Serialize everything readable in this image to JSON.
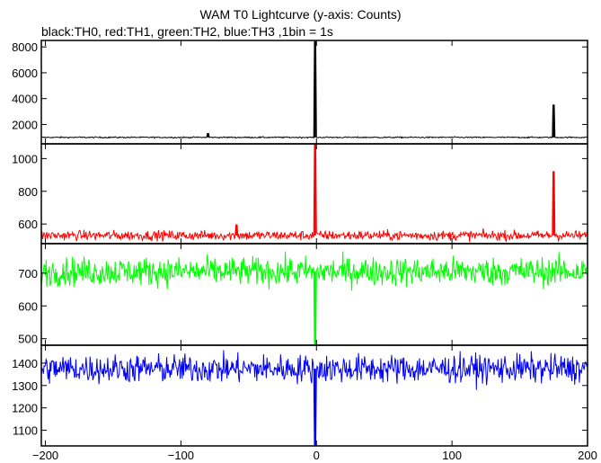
{
  "chart_data": {
    "type": "line",
    "title": "WAM T0 Lightcurve (y-axis: Counts)",
    "subtitle": "black:TH0, red:TH1, green:TH2, blue:TH3 ,1bin = 1s",
    "xlim": [
      -203,
      200
    ],
    "x_ticks": [
      -200,
      -100,
      0,
      100,
      200
    ],
    "x_tick_labels": [
      "−200",
      "−100",
      "0",
      "100",
      "200"
    ],
    "grid": false,
    "panels": [
      {
        "name": "TH0",
        "color": "#000000",
        "ylim": [
          500,
          8500
        ],
        "y_ticks": [
          2000,
          4000,
          6000,
          8000
        ],
        "baseline": 1000,
        "noise": 25,
        "features": [
          {
            "x": -80,
            "y": 1300
          },
          {
            "x": -1,
            "y": 8400
          },
          {
            "x": 175,
            "y": 3500
          }
        ]
      },
      {
        "name": "TH1",
        "color": "#ff0000",
        "ylim": [
          480,
          1090
        ],
        "y_ticks": [
          600,
          800,
          1000
        ],
        "baseline": 530,
        "noise": 15,
        "features": [
          {
            "x": -59,
            "y": 595
          },
          {
            "x": -1,
            "y": 1090
          },
          {
            "x": 175,
            "y": 920
          }
        ]
      },
      {
        "name": "TH2",
        "color": "#00ff00",
        "ylim": [
          480,
          790
        ],
        "y_ticks": [
          500,
          600,
          700
        ],
        "baseline": 705,
        "noise": 22,
        "features": [
          {
            "x": -1,
            "y": 480
          }
        ]
      },
      {
        "name": "TH3",
        "color": "#0000ff",
        "ylim": [
          1030,
          1480
        ],
        "y_ticks": [
          1100,
          1200,
          1300,
          1400
        ],
        "baseline": 1375,
        "noise": 32,
        "features": [
          {
            "x": -1,
            "y": 1030
          }
        ]
      }
    ]
  }
}
